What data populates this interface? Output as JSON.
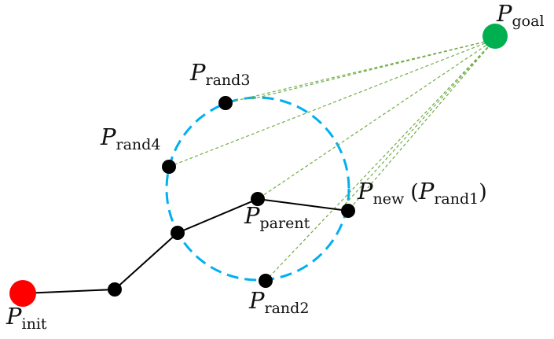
{
  "labels": {
    "p": "P",
    "goal_sub": "goal",
    "rand3_sub": "rand3",
    "rand4_sub": "rand4",
    "new_sub": "new",
    "paren_open": "(",
    "rand1_sub": "rand1",
    "paren_close": ")",
    "parent_sub": "parent",
    "rand2_sub": "rand2",
    "init_sub": "init"
  },
  "colors": {
    "start": "#ff0000",
    "goal": "#00b050",
    "node": "#000000",
    "circle": "#00b0f0",
    "guide": "#70ad47",
    "edge": "#000000"
  }
}
